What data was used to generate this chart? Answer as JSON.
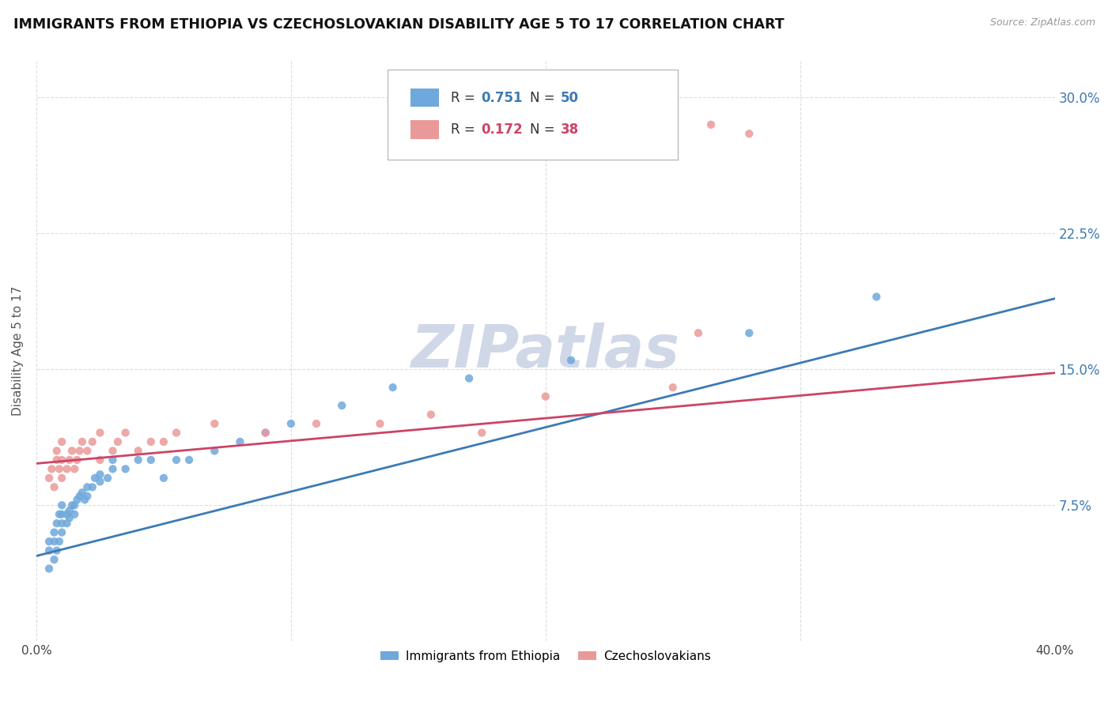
{
  "title": "IMMIGRANTS FROM ETHIOPIA VS CZECHOSLOVAKIAN DISABILITY AGE 5 TO 17 CORRELATION CHART",
  "source_text": "Source: ZipAtlas.com",
  "ylabel_text": "Disability Age 5 to 17",
  "x_tick_labels": [
    "0.0%",
    "",
    "",
    "",
    "40.0%"
  ],
  "x_tick_values": [
    0.0,
    0.1,
    0.2,
    0.3,
    0.4
  ],
  "y_tick_labels": [
    "7.5%",
    "15.0%",
    "22.5%",
    "30.0%"
  ],
  "y_tick_values": [
    0.075,
    0.15,
    0.225,
    0.3
  ],
  "xlim": [
    0.0,
    0.4
  ],
  "ylim": [
    0.0,
    0.32
  ],
  "legend_labels": [
    "Immigrants from Ethiopia",
    "Czechoslovakians"
  ],
  "R_ethiopia": 0.751,
  "N_ethiopia": 50,
  "R_czech": 0.172,
  "N_czech": 38,
  "color_ethiopia": "#6fa8dc",
  "color_czech": "#ea9999",
  "trendline_color_ethiopia": "#3d7ab5",
  "trendline_color_czech": "#cc4466",
  "background_color": "#ffffff",
  "grid_color": "#dddddd",
  "watermark_text": "ZIPatlas",
  "watermark_color": "#d0d8e8",
  "ethiopia_x": [
    0.005,
    0.005,
    0.005,
    0.007,
    0.007,
    0.007,
    0.008,
    0.008,
    0.009,
    0.009,
    0.01,
    0.01,
    0.01,
    0.01,
    0.012,
    0.012,
    0.013,
    0.013,
    0.014,
    0.015,
    0.015,
    0.016,
    0.017,
    0.018,
    0.019,
    0.02,
    0.02,
    0.022,
    0.023,
    0.025,
    0.025,
    0.028,
    0.03,
    0.03,
    0.035,
    0.04,
    0.045,
    0.05,
    0.055,
    0.06,
    0.07,
    0.08,
    0.09,
    0.1,
    0.12,
    0.14,
    0.17,
    0.21,
    0.28,
    0.33
  ],
  "ethiopia_y": [
    0.04,
    0.05,
    0.055,
    0.045,
    0.055,
    0.06,
    0.05,
    0.065,
    0.055,
    0.07,
    0.06,
    0.065,
    0.07,
    0.075,
    0.065,
    0.07,
    0.068,
    0.072,
    0.075,
    0.07,
    0.075,
    0.078,
    0.08,
    0.082,
    0.078,
    0.08,
    0.085,
    0.085,
    0.09,
    0.088,
    0.092,
    0.09,
    0.095,
    0.1,
    0.095,
    0.1,
    0.1,
    0.09,
    0.1,
    0.1,
    0.105,
    0.11,
    0.115,
    0.12,
    0.13,
    0.14,
    0.145,
    0.155,
    0.17,
    0.19
  ],
  "czech_x": [
    0.005,
    0.006,
    0.007,
    0.008,
    0.008,
    0.009,
    0.01,
    0.01,
    0.01,
    0.012,
    0.013,
    0.014,
    0.015,
    0.016,
    0.017,
    0.018,
    0.02,
    0.022,
    0.025,
    0.025,
    0.03,
    0.032,
    0.035,
    0.04,
    0.045,
    0.05,
    0.055,
    0.07,
    0.09,
    0.11,
    0.135,
    0.155,
    0.175,
    0.2,
    0.25,
    0.26,
    0.265,
    0.28
  ],
  "czech_y": [
    0.09,
    0.095,
    0.085,
    0.1,
    0.105,
    0.095,
    0.09,
    0.1,
    0.11,
    0.095,
    0.1,
    0.105,
    0.095,
    0.1,
    0.105,
    0.11,
    0.105,
    0.11,
    0.1,
    0.115,
    0.105,
    0.11,
    0.115,
    0.105,
    0.11,
    0.11,
    0.115,
    0.12,
    0.115,
    0.12,
    0.12,
    0.125,
    0.115,
    0.135,
    0.14,
    0.17,
    0.285,
    0.28
  ]
}
